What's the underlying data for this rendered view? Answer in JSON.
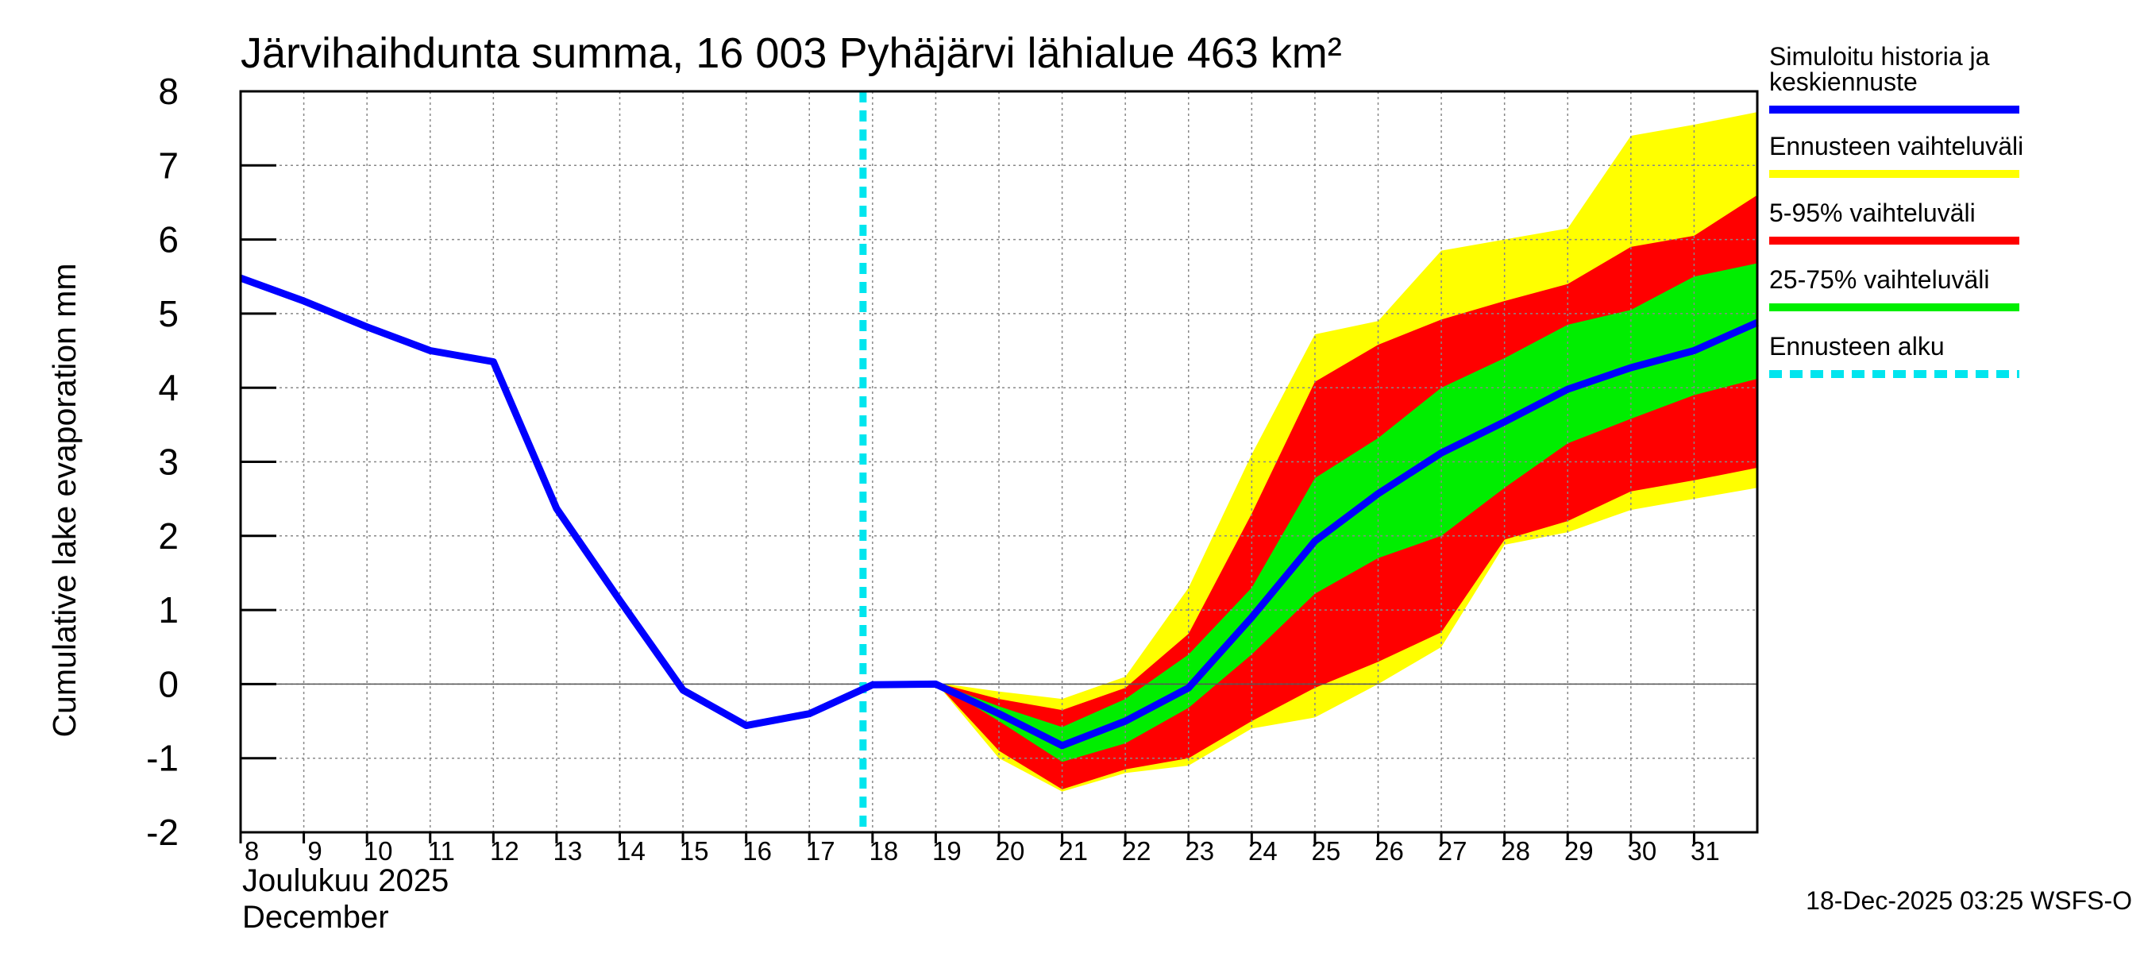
{
  "chart_data": {
    "type": "area",
    "title": "Järvihaihdunta summa, 16 003 Pyhäjärvi lähialue 463 km²",
    "ylabel": "Cumulative lake evaporation   mm",
    "xlabel_line1": "Joulukuu  2025",
    "xlabel_line2": "December",
    "footer": "18-Dec-2025 03:25 WSFS-O",
    "ylim": [
      -2,
      8
    ],
    "yticks": [
      -2,
      -1,
      0,
      1,
      2,
      3,
      4,
      5,
      6,
      7,
      8
    ],
    "xlim": [
      8,
      32
    ],
    "xticks": [
      8,
      9,
      10,
      11,
      12,
      13,
      14,
      15,
      16,
      17,
      18,
      19,
      20,
      21,
      22,
      23,
      24,
      25,
      26,
      27,
      28,
      29,
      30,
      31
    ],
    "grid": true,
    "forecast_start": 18,
    "legend": [
      {
        "key": "history",
        "label_lines": [
          "Simuloitu historia ja",
          "keskiennuste"
        ],
        "color": "#0000ff",
        "style": "line"
      },
      {
        "key": "range",
        "label_lines": [
          "Ennusteen vaihteluväli"
        ],
        "color": "#ffff00",
        "style": "line"
      },
      {
        "key": "p5_95",
        "label_lines": [
          "5-95% vaihteluväli"
        ],
        "color": "#ff0000",
        "style": "line"
      },
      {
        "key": "p25_75",
        "label_lines": [
          "25-75% vaihteluväli"
        ],
        "color": "#00ee00",
        "style": "line"
      },
      {
        "key": "start",
        "label_lines": [
          "Ennusteen alku"
        ],
        "color": "#00e5ee",
        "style": "dashed"
      }
    ],
    "bands": [
      {
        "name": "Ennusteen vaihteluväli",
        "color": "#ffff00",
        "x": [
          19,
          20,
          21,
          22,
          23,
          24,
          25,
          26,
          27,
          28,
          29,
          30,
          31,
          32
        ],
        "upper": [
          0.02,
          -0.1,
          -0.2,
          0.1,
          1.3,
          3.1,
          4.72,
          4.9,
          5.85,
          6.0,
          6.15,
          7.4,
          7.55,
          7.72
        ],
        "lower": [
          0.02,
          -1.0,
          -1.45,
          -1.2,
          -1.1,
          -0.6,
          -0.45,
          0.0,
          0.5,
          1.88,
          2.05,
          2.35,
          2.5,
          2.65
        ]
      },
      {
        "name": "5-95% vaihteluväli",
        "color": "#ff0000",
        "x": [
          19,
          20,
          21,
          22,
          23,
          24,
          25,
          26,
          27,
          28,
          29,
          30,
          31,
          32
        ],
        "upper": [
          0.02,
          -0.2,
          -0.35,
          -0.05,
          0.68,
          2.3,
          4.08,
          4.58,
          4.92,
          5.17,
          5.4,
          5.9,
          6.05,
          6.6
        ],
        "lower": [
          0.02,
          -0.9,
          -1.42,
          -1.15,
          -1.0,
          -0.5,
          -0.05,
          0.3,
          0.7,
          1.95,
          2.2,
          2.6,
          2.75,
          2.92
        ]
      },
      {
        "name": "25-75% vaihteluväli",
        "color": "#00ee00",
        "x": [
          19,
          20,
          21,
          22,
          23,
          24,
          25,
          26,
          27,
          28,
          29,
          30,
          31,
          32
        ],
        "upper": [
          0.02,
          -0.3,
          -0.58,
          -0.2,
          0.4,
          1.3,
          2.78,
          3.32,
          4.0,
          4.4,
          4.85,
          5.05,
          5.5,
          5.68
        ],
        "lower": [
          0.02,
          -0.5,
          -1.05,
          -0.8,
          -0.32,
          0.4,
          1.22,
          1.7,
          2.0,
          2.65,
          3.25,
          3.58,
          3.9,
          4.12
        ]
      }
    ],
    "series": [
      {
        "name": "Simuloitu historia ja keskiennuste",
        "color": "#0000ff",
        "x": [
          8,
          9,
          10,
          11,
          12,
          13,
          14,
          15,
          16,
          17,
          18,
          19,
          20,
          21,
          22,
          23,
          24,
          25,
          26,
          27,
          28,
          29,
          30,
          31,
          32
        ],
        "values": [
          5.48,
          5.17,
          4.82,
          4.5,
          4.35,
          2.37,
          1.13,
          -0.08,
          -0.56,
          -0.4,
          -0.01,
          0.0,
          -0.4,
          -0.83,
          -0.5,
          -0.05,
          0.9,
          1.93,
          2.57,
          3.12,
          3.54,
          3.98,
          4.27,
          4.5,
          4.88
        ]
      }
    ]
  }
}
